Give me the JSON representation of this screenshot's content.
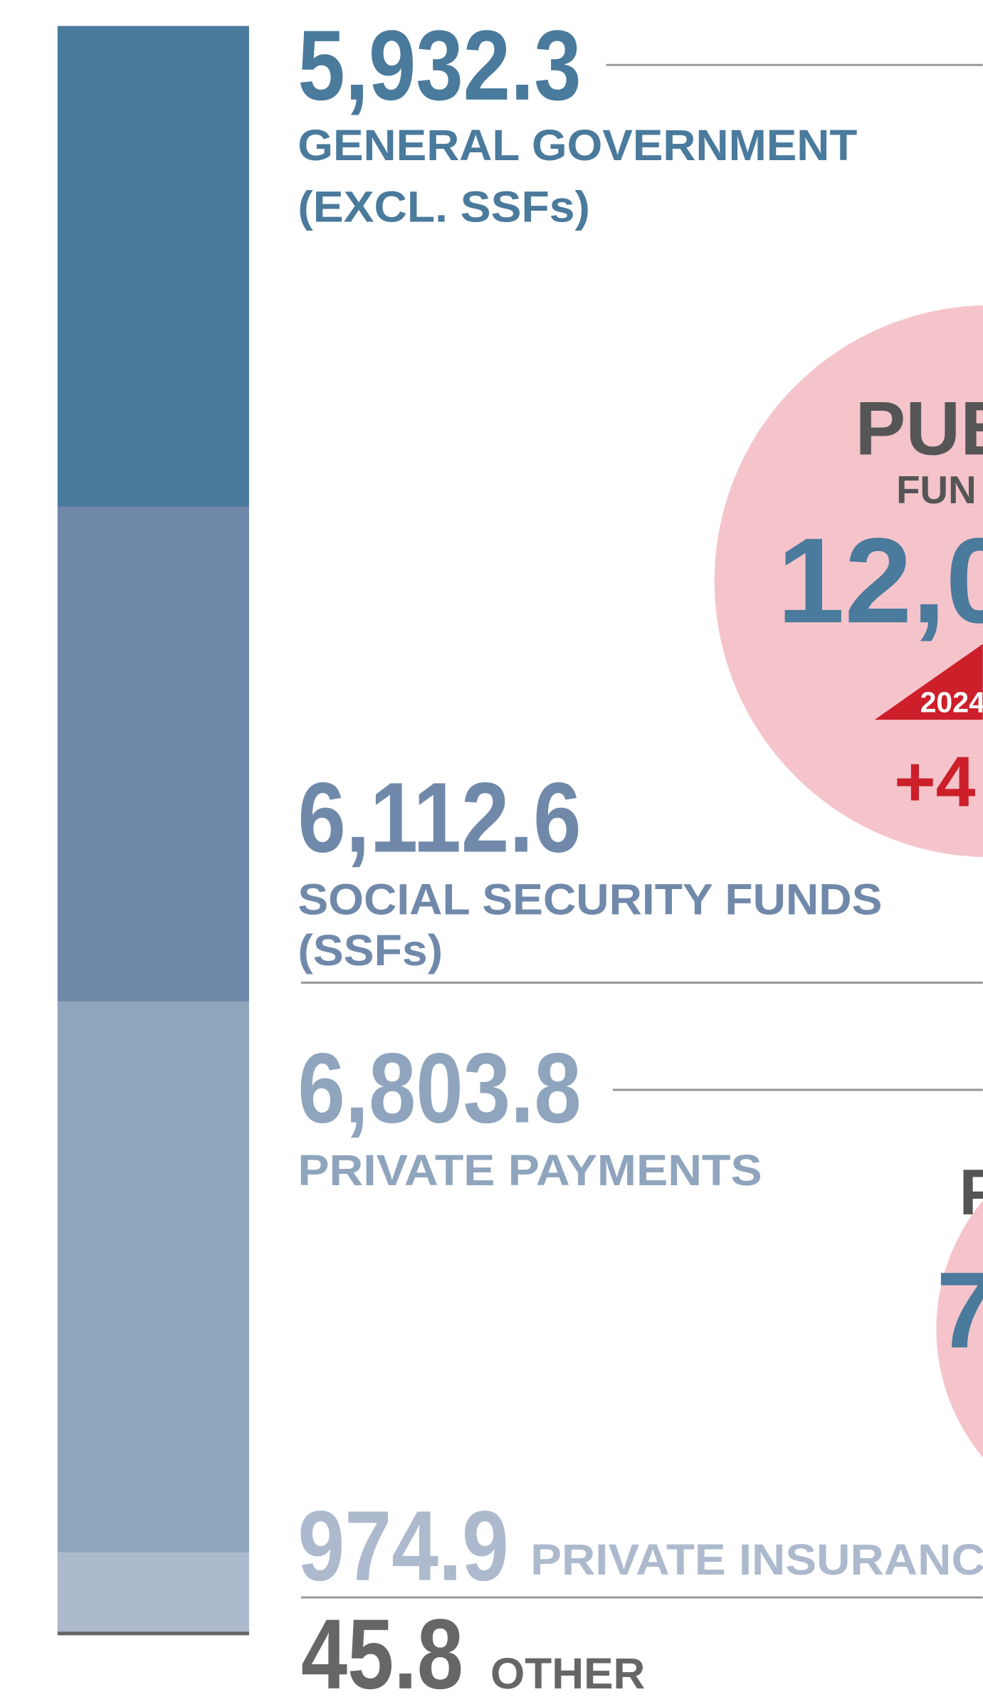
{
  "chart_data": {
    "type": "stacked_bar",
    "series": [
      {
        "name": [
          "GENERAL GOVERNMENT",
          "(EXCL. SSFs)"
        ],
        "color": "#4a7a9c",
        "values": [
          5932.3
        ],
        "value_labels": [
          "5,932.3"
        ]
      },
      {
        "name": [
          "SOCIAL SECURITY FUNDS",
          "(SSFs)"
        ],
        "color": "#7089aa",
        "values": [
          6112.6
        ],
        "value_labels": [
          "6,112.6"
        ]
      },
      {
        "name": [
          "PRIVATE PAYMENTS"
        ],
        "color": "#8fa4bd",
        "values": [
          6803.8
        ],
        "value_labels": [
          "6,803.8"
        ]
      },
      {
        "name": [
          "PRIVATE INSURANC"
        ],
        "color": "#adb9cd",
        "values": [
          974.9
        ],
        "value_labels": [
          "974.9"
        ]
      },
      {
        "name": [
          "OTHER"
        ],
        "color": "#666666",
        "values": [
          45.8
        ],
        "value_labels": [
          "45.8"
        ]
      }
    ],
    "annotations": [
      {
        "text": "PUB"
      },
      {
        "text": "FUN"
      },
      {
        "text": "12,0"
      },
      {
        "text": "2024"
      },
      {
        "text": "+4"
      },
      {
        "text": "P"
      },
      {
        "text": "7"
      }
    ]
  }
}
